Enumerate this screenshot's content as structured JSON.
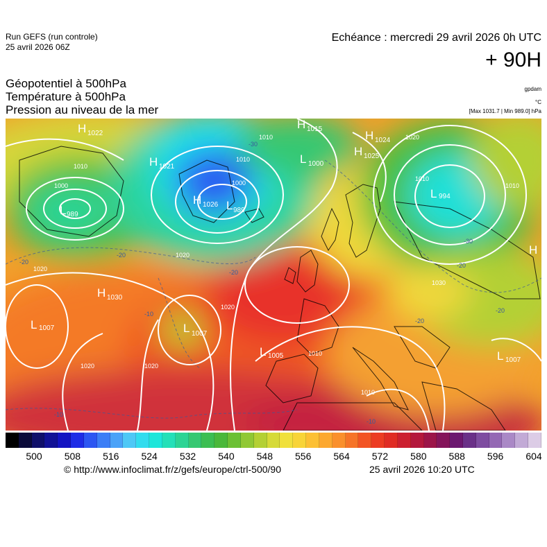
{
  "header": {
    "run_name": "Run GEFS (run controle)",
    "run_date": "25 avril 2026 06Z",
    "valid_time": "Echéance : mercredi 29 avril 2026 0h UTC",
    "lead_time": "+ 90H"
  },
  "titles": {
    "line1": "Géopotentiel à 500hPa",
    "line2": "Température à 500hPa",
    "line3": "Pression au niveau de la mer"
  },
  "units": {
    "geopotential": "gpdam",
    "temperature": "°C",
    "pressure_range": "[Max 1031.7 | Min 989.0] hPa"
  },
  "map": {
    "region": "Europe / North Atlantic",
    "pressure_centers": [
      {
        "type": "H",
        "value": "1022"
      },
      {
        "type": "H",
        "value": "1021"
      },
      {
        "type": "L",
        "value": "989"
      },
      {
        "type": "H",
        "value": "1026"
      },
      {
        "type": "L",
        "value": "989"
      },
      {
        "type": "H",
        "value": "1015"
      },
      {
        "type": "L",
        "value": "1000"
      },
      {
        "type": "H",
        "value": "1024"
      },
      {
        "type": "H",
        "value": "1025"
      },
      {
        "type": "L",
        "value": "994"
      },
      {
        "type": "H",
        "value": "1030"
      },
      {
        "type": "L",
        "value": "1007"
      },
      {
        "type": "L",
        "value": "1007"
      },
      {
        "type": "L",
        "value": "1005"
      },
      {
        "type": "L",
        "value": "1007"
      },
      {
        "type": "H",
        "value": ""
      }
    ],
    "isobar_labels": [
      "1010",
      "1000",
      "1010",
      "1020",
      "1010",
      "1000",
      "1010",
      "1010",
      "1020",
      "1020",
      "1020",
      "1010",
      "1020",
      "1030",
      "1010",
      "1010"
    ],
    "temperature_labels": [
      "-20",
      "-30",
      "-20",
      "-30",
      "-20",
      "-20",
      "-20",
      "-10",
      "-10",
      "-20",
      "-10"
    ]
  },
  "colorbar": {
    "colors": [
      "#000000",
      "#0b0b3a",
      "#10106a",
      "#121296",
      "#1414c2",
      "#1e2ce6",
      "#2c56f2",
      "#3c7ef6",
      "#4aa2f8",
      "#4ec8f6",
      "#32dcee",
      "#1ee6da",
      "#24e0b8",
      "#2cd494",
      "#36c872",
      "#3cbe52",
      "#4ab83a",
      "#6cc034",
      "#90c834",
      "#b4d034",
      "#d6da38",
      "#f0e03c",
      "#f8d438",
      "#fcc034",
      "#fca830",
      "#fa902c",
      "#f67428",
      "#f25424",
      "#ec3c22",
      "#e02c24",
      "#cc2030",
      "#b4183c",
      "#9c1448",
      "#84145a",
      "#6c1870",
      "#6a3088",
      "#7e4ca0",
      "#9468b4",
      "#aa88c6",
      "#c2aad6",
      "#dccce6"
    ],
    "tick_labels": [
      "500",
      "508",
      "516",
      "524",
      "532",
      "540",
      "548",
      "556",
      "564",
      "572",
      "580",
      "588",
      "596",
      "604"
    ]
  },
  "footer": {
    "credit": "© http://www.infoclimat.fr/z/gefs/europe/ctrl-500/90",
    "generated": "25 avril 2026 10:20 UTC"
  }
}
